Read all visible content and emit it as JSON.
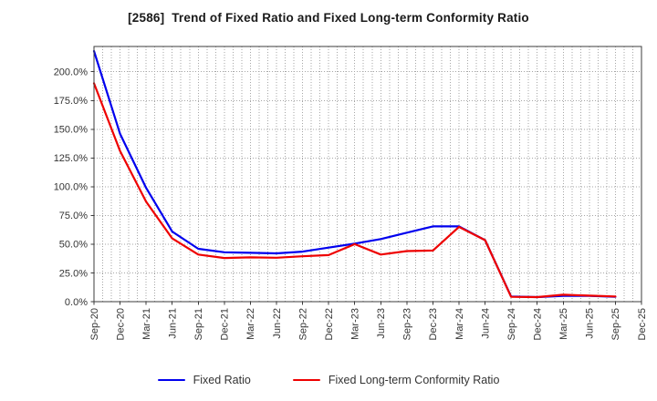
{
  "chart_data": {
    "type": "line",
    "title": "[2586]  Trend of Fixed Ratio and Fixed Long-term Conformity Ratio",
    "categories": [
      "Sep-20",
      "Dec-20",
      "Mar-21",
      "Jun-21",
      "Sep-21",
      "Dec-21",
      "Mar-22",
      "Jun-22",
      "Sep-22",
      "Dec-22",
      "Mar-23",
      "Jun-23",
      "Sep-23",
      "Dec-23",
      "Mar-24",
      "Jun-24",
      "Sep-24",
      "Dec-24",
      "Mar-25",
      "Jun-25",
      "Sep-25",
      "Dec-25"
    ],
    "y_ticks": [
      0,
      25,
      50,
      75,
      100,
      125,
      150,
      175,
      200
    ],
    "y_tick_labels": [
      "0.0%",
      "25.0%",
      "50.0%",
      "75.0%",
      "100.0%",
      "125.0%",
      "150.0%",
      "175.0%",
      "200.0%"
    ],
    "ylim": [
      0,
      222
    ],
    "grid": true,
    "legend_position": "bottom",
    "background_color": "#ffffff",
    "grid_color": "#a6a6a6",
    "axis_color": "#3c3c3c",
    "tick_label_color": "#333333",
    "series": [
      {
        "name": "Fixed Ratio",
        "color": "#0000ee",
        "values": [
          218,
          146,
          99,
          61,
          46,
          43,
          42.5,
          42,
          43.5,
          47,
          50.5,
          54.5,
          60,
          65.5,
          65.5,
          53.5,
          4.5,
          4,
          5,
          5,
          4.2,
          null
        ]
      },
      {
        "name": "Fixed Long-term Conformity Ratio",
        "color": "#ee0000",
        "values": [
          190,
          131,
          87,
          55,
          41,
          38,
          38.5,
          38.2,
          39.5,
          40.5,
          50,
          41,
          44,
          44.5,
          65,
          53.5,
          4.2,
          4,
          6,
          5.2,
          4.5,
          null
        ]
      }
    ]
  }
}
